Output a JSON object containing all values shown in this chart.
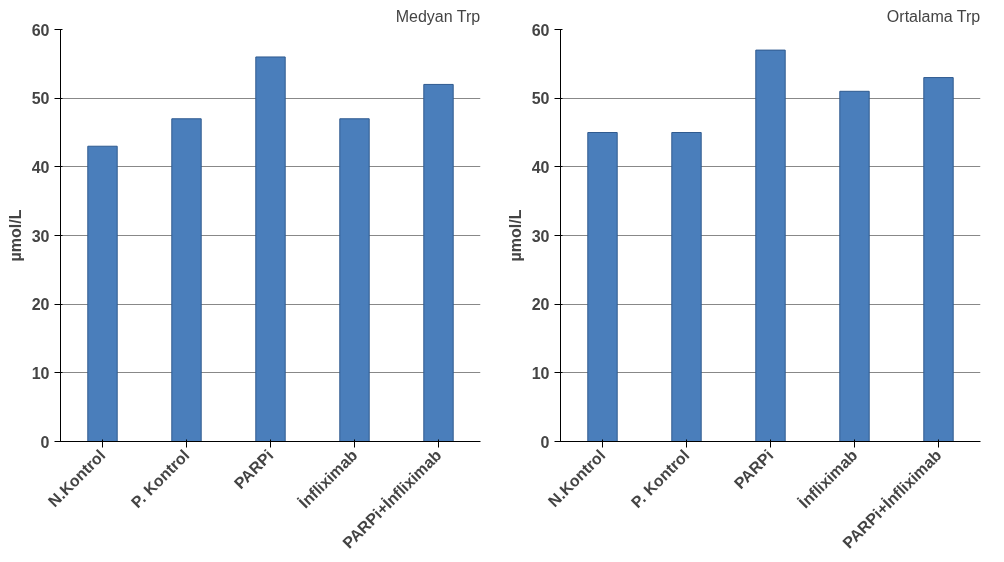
{
  "chart_data": [
    {
      "type": "bar",
      "title": "Medyan Trp",
      "ylabel": "µmol/L",
      "categories": [
        "N.Kontrol",
        "P. Kontrol",
        "PARPi",
        "İnfliximab",
        "PARPi+İnfliximab"
      ],
      "values": [
        43,
        47,
        56,
        47,
        52
      ],
      "color": "#4a7ebb",
      "ylim": [
        0,
        60
      ],
      "yticks": [
        0,
        10,
        20,
        30,
        40,
        50,
        60
      ],
      "grid": "y"
    },
    {
      "type": "bar",
      "title": "Ortalama Trp",
      "ylabel": "µmol/L",
      "categories": [
        "N.Kontrol",
        "P. Kontrol",
        "PARPi",
        "İnfliximab",
        "PARPi+İnfliximab"
      ],
      "values": [
        45,
        45,
        57,
        51,
        53
      ],
      "color": "#4a7ebb",
      "ylim": [
        0,
        60
      ],
      "yticks": [
        0,
        10,
        20,
        30,
        40,
        50,
        60
      ],
      "grid": "y"
    }
  ]
}
